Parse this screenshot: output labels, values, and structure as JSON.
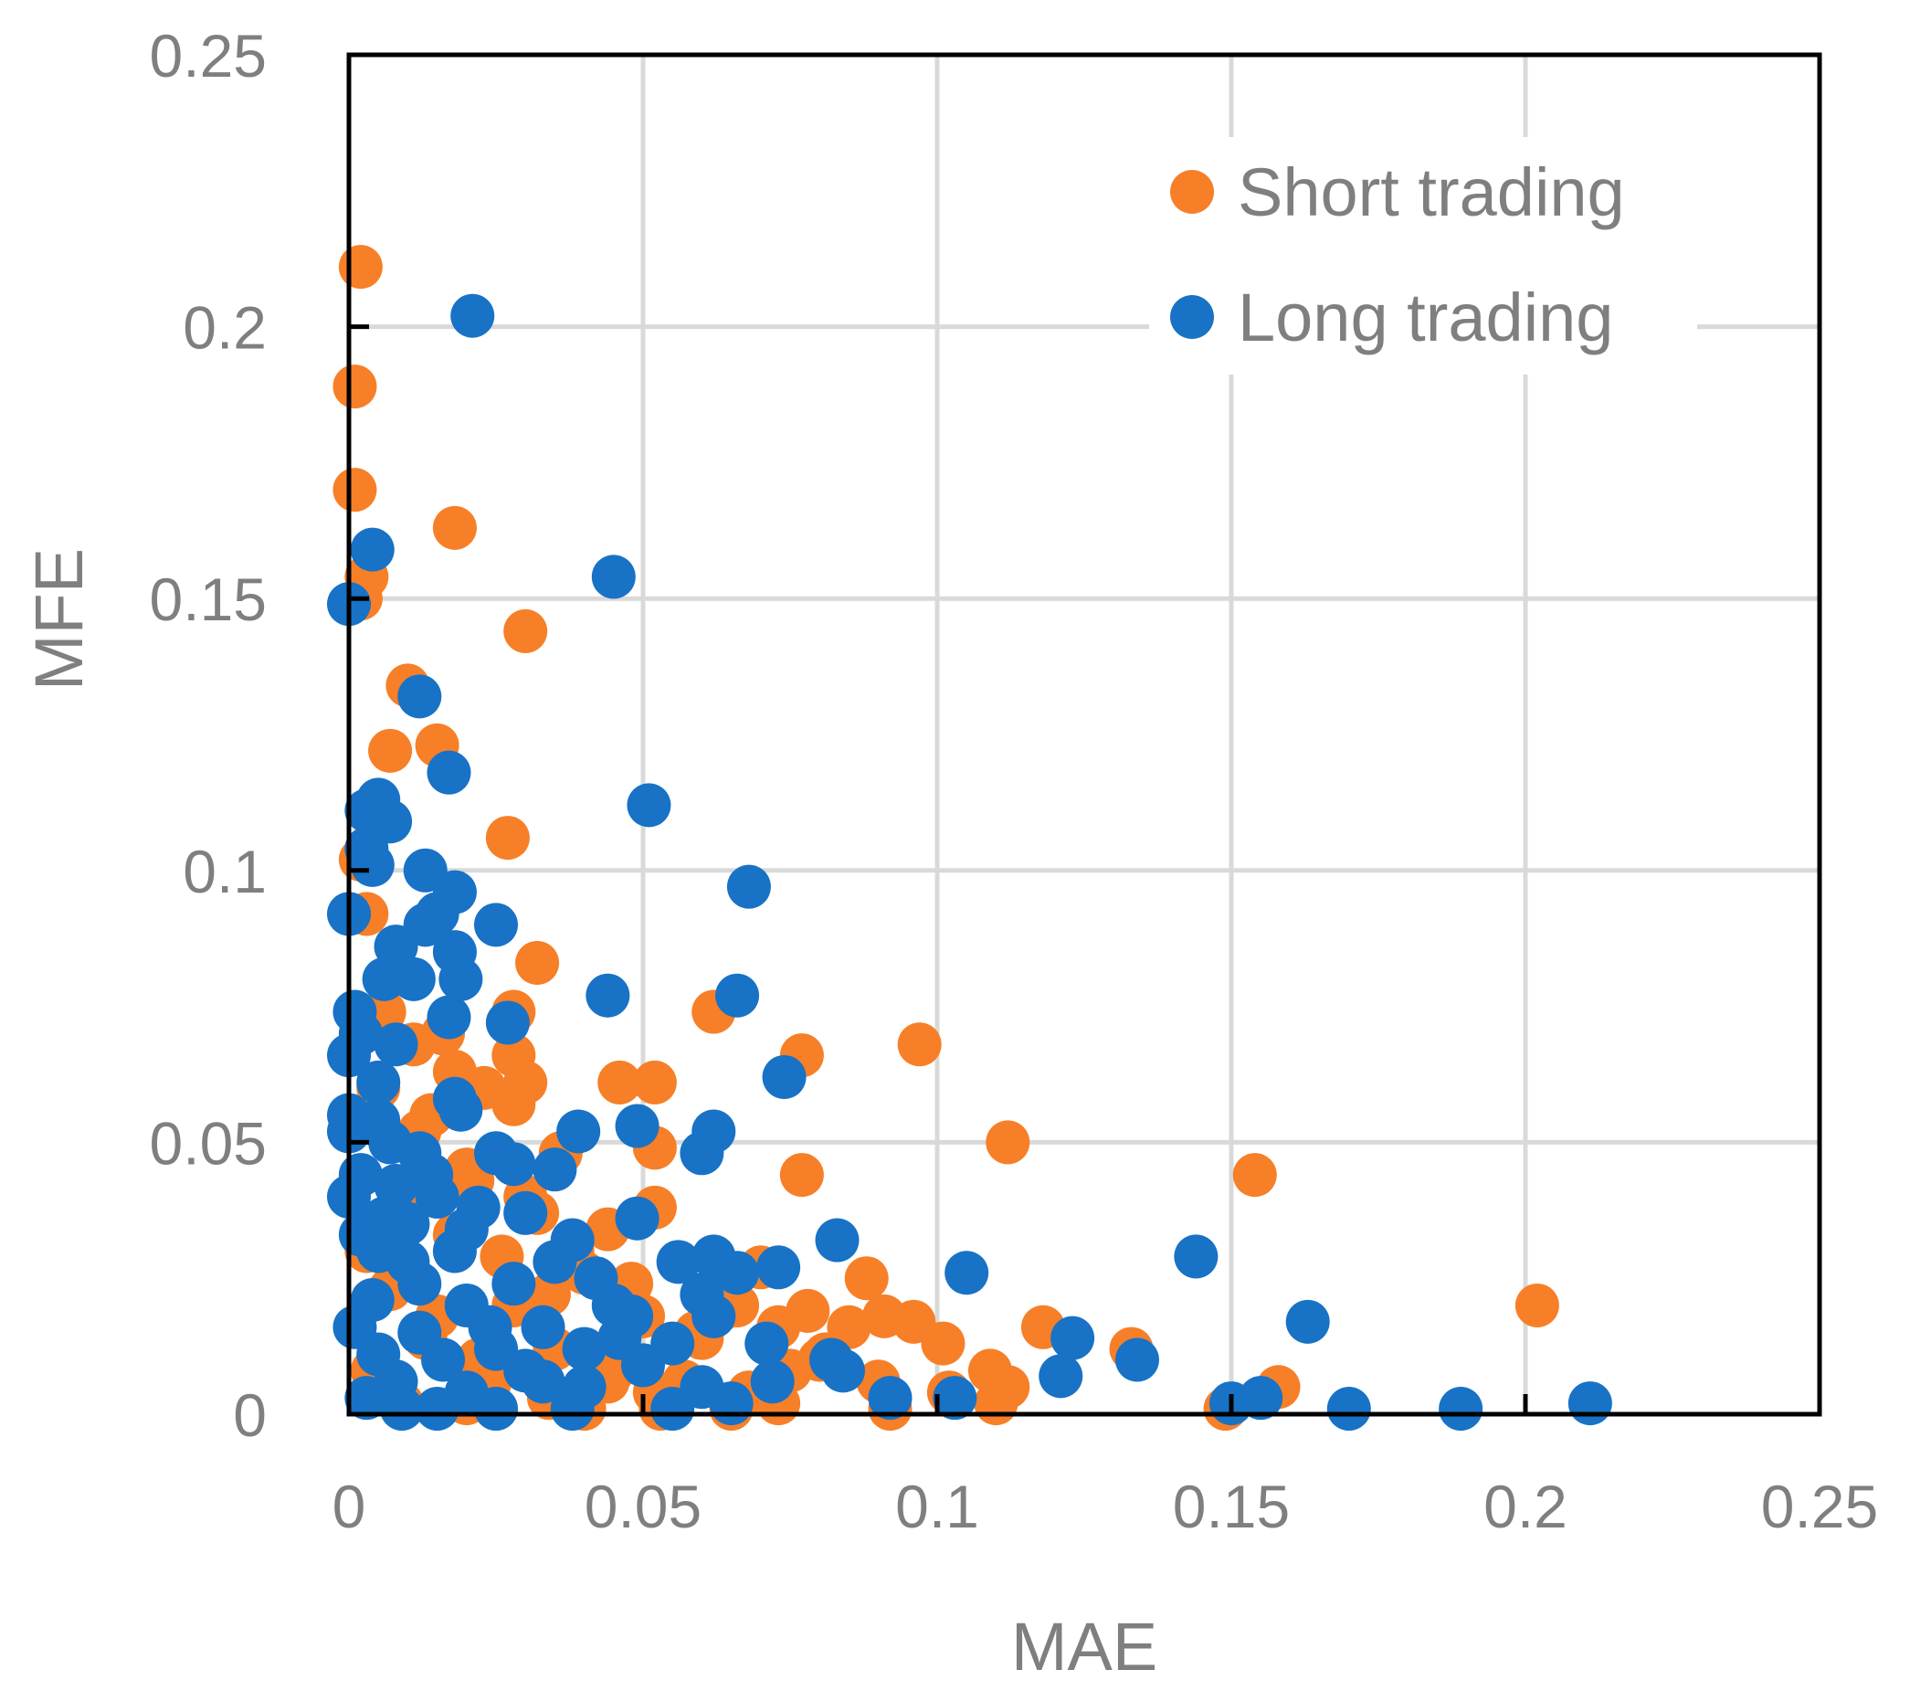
{
  "chart_data": {
    "type": "scatter",
    "title": "",
    "xlabel": "MAE",
    "ylabel": "MFE",
    "xlim": [
      0,
      0.25
    ],
    "ylim": [
      0,
      0.25
    ],
    "xticks": [
      "0",
      "0.05",
      "0.1",
      "0.15",
      "0.2",
      "0.25"
    ],
    "yticks": [
      "0",
      "0.05",
      "0.1",
      "0.15",
      "0.2",
      "0.25"
    ],
    "grid": true,
    "legend_position": "top-right",
    "series": [
      {
        "name": "Short trading",
        "color": "#f77f27",
        "points": [
          [
            0.002,
            0.211
          ],
          [
            0.001,
            0.189
          ],
          [
            0.001,
            0.17
          ],
          [
            0.018,
            0.163
          ],
          [
            0.003,
            0.154
          ],
          [
            0.002,
            0.15
          ],
          [
            0.03,
            0.144
          ],
          [
            0.01,
            0.134
          ],
          [
            0.015,
            0.123
          ],
          [
            0.007,
            0.122
          ],
          [
            0.027,
            0.106
          ],
          [
            0.002,
            0.102
          ],
          [
            0.003,
            0.092
          ],
          [
            0.032,
            0.083
          ],
          [
            0.006,
            0.074
          ],
          [
            0.028,
            0.074
          ],
          [
            0.062,
            0.074
          ],
          [
            0.016,
            0.07
          ],
          [
            0.011,
            0.068
          ],
          [
            0.097,
            0.068
          ],
          [
            0.077,
            0.066
          ],
          [
            0.028,
            0.066
          ],
          [
            0.018,
            0.063
          ],
          [
            0.03,
            0.061
          ],
          [
            0.046,
            0.061
          ],
          [
            0.052,
            0.061
          ],
          [
            0.023,
            0.06
          ],
          [
            0.028,
            0.057
          ],
          [
            0.014,
            0.055
          ],
          [
            0.112,
            0.05
          ],
          [
            0.052,
            0.049
          ],
          [
            0.036,
            0.048
          ],
          [
            0.154,
            0.044
          ],
          [
            0.077,
            0.044
          ],
          [
            0.021,
            0.043
          ],
          [
            0.012,
            0.041
          ],
          [
            0.052,
            0.038
          ],
          [
            0.032,
            0.037
          ],
          [
            0.044,
            0.034
          ],
          [
            0.018,
            0.033
          ],
          [
            0.008,
            0.031
          ],
          [
            0.003,
            0.03
          ],
          [
            0.026,
            0.029
          ],
          [
            0.07,
            0.027
          ],
          [
            0.088,
            0.025
          ],
          [
            0.048,
            0.024
          ],
          [
            0.007,
            0.023
          ],
          [
            0.034,
            0.022
          ],
          [
            0.202,
            0.02
          ],
          [
            0.063,
            0.019
          ],
          [
            0.078,
            0.019
          ],
          [
            0.091,
            0.018
          ],
          [
            0.096,
            0.017
          ],
          [
            0.118,
            0.016
          ],
          [
            0.085,
            0.016
          ],
          [
            0.073,
            0.016
          ],
          [
            0.059,
            0.015
          ],
          [
            0.013,
            0.014
          ],
          [
            0.101,
            0.013
          ],
          [
            0.133,
            0.012
          ],
          [
            0.081,
            0.011
          ],
          [
            0.043,
            0.011
          ],
          [
            0.022,
            0.01
          ],
          [
            0.08,
            0.01
          ],
          [
            0.109,
            0.008
          ],
          [
            0.004,
            0.008
          ],
          [
            0.112,
            0.005
          ],
          [
            0.158,
            0.005
          ],
          [
            0.102,
            0.004
          ],
          [
            0.068,
            0.004
          ],
          [
            0.052,
            0.004
          ],
          [
            0.034,
            0.003
          ],
          [
            0.11,
            0.002
          ],
          [
            0.073,
            0.002
          ],
          [
            0.053,
            0.001
          ],
          [
            0.02,
            0.002
          ],
          [
            0.149,
            0.001
          ],
          [
            0.092,
            0.001
          ],
          [
            0.065,
            0.001
          ],
          [
            0.04,
            0.001
          ],
          [
            0.025,
            0.001
          ],
          [
            0.009,
            0.002
          ],
          [
            0.057,
            0.006
          ],
          [
            0.045,
            0.008
          ],
          [
            0.035,
            0.012
          ],
          [
            0.015,
            0.018
          ],
          [
            0.028,
            0.02
          ],
          [
            0.04,
            0.026
          ],
          [
            0.06,
            0.014
          ],
          [
            0.075,
            0.008
          ],
          [
            0.09,
            0.006
          ],
          [
            0.066,
            0.02
          ],
          [
            0.05,
            0.018
          ],
          [
            0.038,
            0.03
          ],
          [
            0.02,
            0.045
          ],
          [
            0.012,
            0.052
          ],
          [
            0.005,
            0.06
          ],
          [
            0.03,
            0.04
          ],
          [
            0.044,
            0.006
          ],
          [
            0.024,
            0.006
          ]
        ]
      },
      {
        "name": "Long trading",
        "color": "#1872c6",
        "points": [
          [
            0.021,
            0.202
          ],
          [
            0.004,
            0.159
          ],
          [
            0.0,
            0.149
          ],
          [
            0.045,
            0.154
          ],
          [
            0.012,
            0.132
          ],
          [
            0.017,
            0.118
          ],
          [
            0.051,
            0.112
          ],
          [
            0.003,
            0.111
          ],
          [
            0.005,
            0.113
          ],
          [
            0.007,
            0.109
          ],
          [
            0.003,
            0.104
          ],
          [
            0.004,
            0.101
          ],
          [
            0.013,
            0.1
          ],
          [
            0.018,
            0.096
          ],
          [
            0.068,
            0.097
          ],
          [
            0.0,
            0.092
          ],
          [
            0.015,
            0.092
          ],
          [
            0.025,
            0.09
          ],
          [
            0.013,
            0.09
          ],
          [
            0.008,
            0.086
          ],
          [
            0.018,
            0.085
          ],
          [
            0.011,
            0.08
          ],
          [
            0.006,
            0.08
          ],
          [
            0.019,
            0.08
          ],
          [
            0.044,
            0.077
          ],
          [
            0.066,
            0.077
          ],
          [
            0.001,
            0.074
          ],
          [
            0.017,
            0.073
          ],
          [
            0.027,
            0.072
          ],
          [
            0.002,
            0.07
          ],
          [
            0.008,
            0.068
          ],
          [
            0.0,
            0.066
          ],
          [
            0.074,
            0.062
          ],
          [
            0.005,
            0.061
          ],
          [
            0.018,
            0.058
          ],
          [
            0.019,
            0.056
          ],
          [
            0.0,
            0.055
          ],
          [
            0.005,
            0.054
          ],
          [
            0.049,
            0.053
          ],
          [
            0.062,
            0.052
          ],
          [
            0.039,
            0.052
          ],
          [
            0.0,
            0.052
          ],
          [
            0.007,
            0.05
          ],
          [
            0.012,
            0.048
          ],
          [
            0.025,
            0.048
          ],
          [
            0.06,
            0.048
          ],
          [
            0.028,
            0.046
          ],
          [
            0.035,
            0.045
          ],
          [
            0.002,
            0.044
          ],
          [
            0.008,
            0.042
          ],
          [
            0.015,
            0.04
          ],
          [
            0.0,
            0.04
          ],
          [
            0.022,
            0.038
          ],
          [
            0.03,
            0.037
          ],
          [
            0.049,
            0.036
          ],
          [
            0.01,
            0.035
          ],
          [
            0.002,
            0.033
          ],
          [
            0.083,
            0.032
          ],
          [
            0.038,
            0.032
          ],
          [
            0.005,
            0.03
          ],
          [
            0.144,
            0.029
          ],
          [
            0.062,
            0.029
          ],
          [
            0.056,
            0.028
          ],
          [
            0.073,
            0.027
          ],
          [
            0.066,
            0.026
          ],
          [
            0.105,
            0.026
          ],
          [
            0.042,
            0.025
          ],
          [
            0.012,
            0.024
          ],
          [
            0.028,
            0.024
          ],
          [
            0.06,
            0.022
          ],
          [
            0.004,
            0.021
          ],
          [
            0.02,
            0.02
          ],
          [
            0.048,
            0.018
          ],
          [
            0.062,
            0.018
          ],
          [
            0.163,
            0.017
          ],
          [
            0.001,
            0.016
          ],
          [
            0.033,
            0.016
          ],
          [
            0.012,
            0.015
          ],
          [
            0.123,
            0.014
          ],
          [
            0.071,
            0.013
          ],
          [
            0.055,
            0.013
          ],
          [
            0.04,
            0.012
          ],
          [
            0.025,
            0.012
          ],
          [
            0.005,
            0.011
          ],
          [
            0.134,
            0.01
          ],
          [
            0.082,
            0.01
          ],
          [
            0.016,
            0.01
          ],
          [
            0.05,
            0.009
          ],
          [
            0.03,
            0.008
          ],
          [
            0.084,
            0.008
          ],
          [
            0.121,
            0.007
          ],
          [
            0.072,
            0.006
          ],
          [
            0.008,
            0.006
          ],
          [
            0.06,
            0.005
          ],
          [
            0.04,
            0.005
          ],
          [
            0.02,
            0.004
          ],
          [
            0.092,
            0.003
          ],
          [
            0.103,
            0.003
          ],
          [
            0.155,
            0.003
          ],
          [
            0.15,
            0.002
          ],
          [
            0.211,
            0.002
          ],
          [
            0.189,
            0.001
          ],
          [
            0.17,
            0.001
          ],
          [
            0.065,
            0.002
          ],
          [
            0.055,
            0.001
          ],
          [
            0.038,
            0.001
          ],
          [
            0.025,
            0.001
          ],
          [
            0.015,
            0.001
          ],
          [
            0.009,
            0.001
          ],
          [
            0.003,
            0.003
          ],
          [
            0.045,
            0.02
          ],
          [
            0.035,
            0.028
          ],
          [
            0.018,
            0.03
          ],
          [
            0.01,
            0.028
          ],
          [
            0.024,
            0.016
          ],
          [
            0.033,
            0.006
          ],
          [
            0.046,
            0.014
          ],
          [
            0.014,
            0.044
          ],
          [
            0.006,
            0.036
          ],
          [
            0.02,
            0.034
          ]
        ]
      }
    ]
  }
}
